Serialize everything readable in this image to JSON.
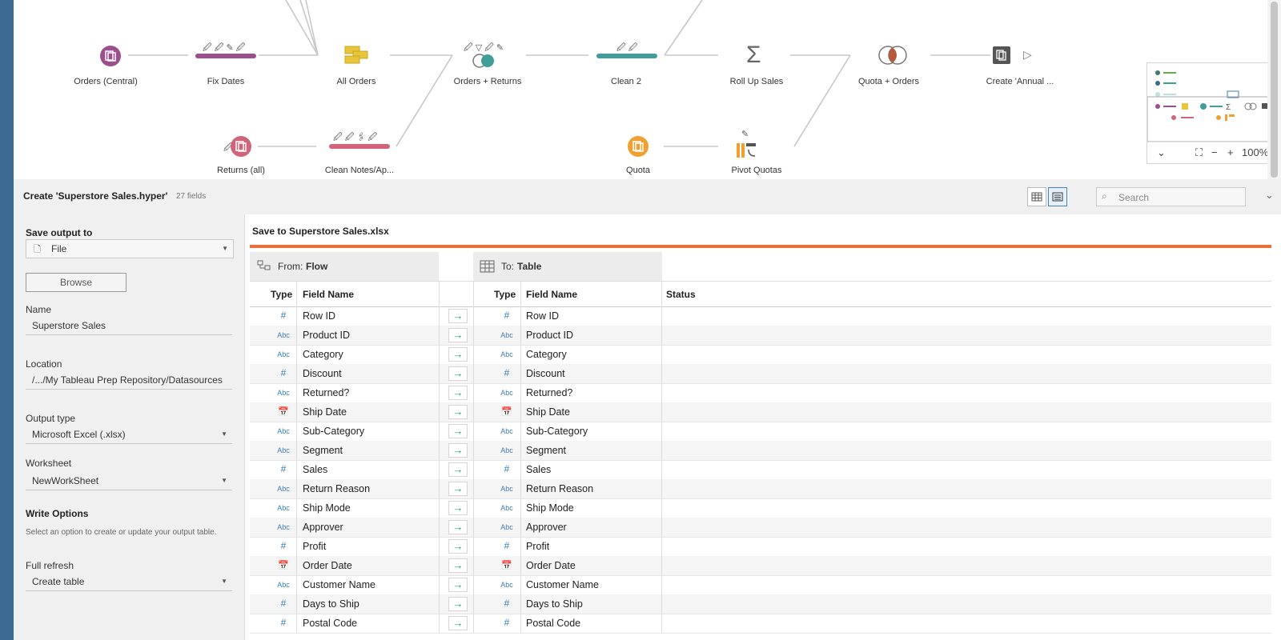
{
  "flow": {
    "nodes": [
      {
        "label": "Orders (Central)"
      },
      {
        "label": "Fix Dates"
      },
      {
        "label": "All Orders"
      },
      {
        "label": "Orders + Returns"
      },
      {
        "label": "Clean 2"
      },
      {
        "label": "Roll Up Sales"
      },
      {
        "label": "Quota + Orders"
      },
      {
        "label": "Create 'Annual ..."
      },
      {
        "label": "Returns (all)"
      },
      {
        "label": "Clean Notes/Ap..."
      },
      {
        "label": "Quota"
      },
      {
        "label": "Pivot Quotas"
      }
    ],
    "zoom": "100%",
    "colors": {
      "purple": "#9b4f8c",
      "pink": "#d0647a",
      "teal": "#3f9e99",
      "yellow": "#e8c53a",
      "orange": "#f0a030",
      "gray": "#555555"
    }
  },
  "pane": {
    "title": "Create 'Superstore Sales.hyper'",
    "field_count": "27 fields",
    "search_placeholder": "Search"
  },
  "settings": {
    "save_output_label": "Save output to",
    "save_output_value": "File",
    "browse_label": "Browse",
    "name_label": "Name",
    "name_value": "Superstore Sales",
    "location_label": "Location",
    "location_value": "/.../My Tableau Prep Repository/Datasources",
    "output_type_label": "Output type",
    "output_type_value": "Microsoft Excel (.xlsx)",
    "worksheet_label": "Worksheet",
    "worksheet_value": "NewWorkSheet",
    "write_options_label": "Write Options",
    "write_options_hint": "Select an option to create or update your output table.",
    "refresh_label": "Full refresh",
    "refresh_value": "Create table"
  },
  "mapping": {
    "title": "Save to Superstore Sales.xlsx",
    "from_prefix": "From:",
    "from_value": "Flow",
    "to_prefix": "To:",
    "to_value": "Table",
    "columns": {
      "type": "Type",
      "field": "Field Name",
      "status": "Status"
    },
    "rows": [
      {
        "type": "#",
        "field": "Row ID"
      },
      {
        "type": "Abc",
        "field": "Product ID"
      },
      {
        "type": "Abc",
        "field": "Category"
      },
      {
        "type": "#",
        "field": "Discount"
      },
      {
        "type": "Abc",
        "field": "Returned?"
      },
      {
        "type": "date",
        "field": "Ship Date"
      },
      {
        "type": "Abc",
        "field": "Sub-Category"
      },
      {
        "type": "Abc",
        "field": "Segment"
      },
      {
        "type": "#",
        "field": "Sales"
      },
      {
        "type": "Abc",
        "field": "Return Reason"
      },
      {
        "type": "Abc",
        "field": "Ship Mode"
      },
      {
        "type": "Abc",
        "field": "Approver"
      },
      {
        "type": "#",
        "field": "Profit"
      },
      {
        "type": "date",
        "field": "Order Date"
      },
      {
        "type": "Abc",
        "field": "Customer Name"
      },
      {
        "type": "#",
        "field": "Days to Ship"
      },
      {
        "type": "#",
        "field": "Postal Code"
      }
    ]
  }
}
